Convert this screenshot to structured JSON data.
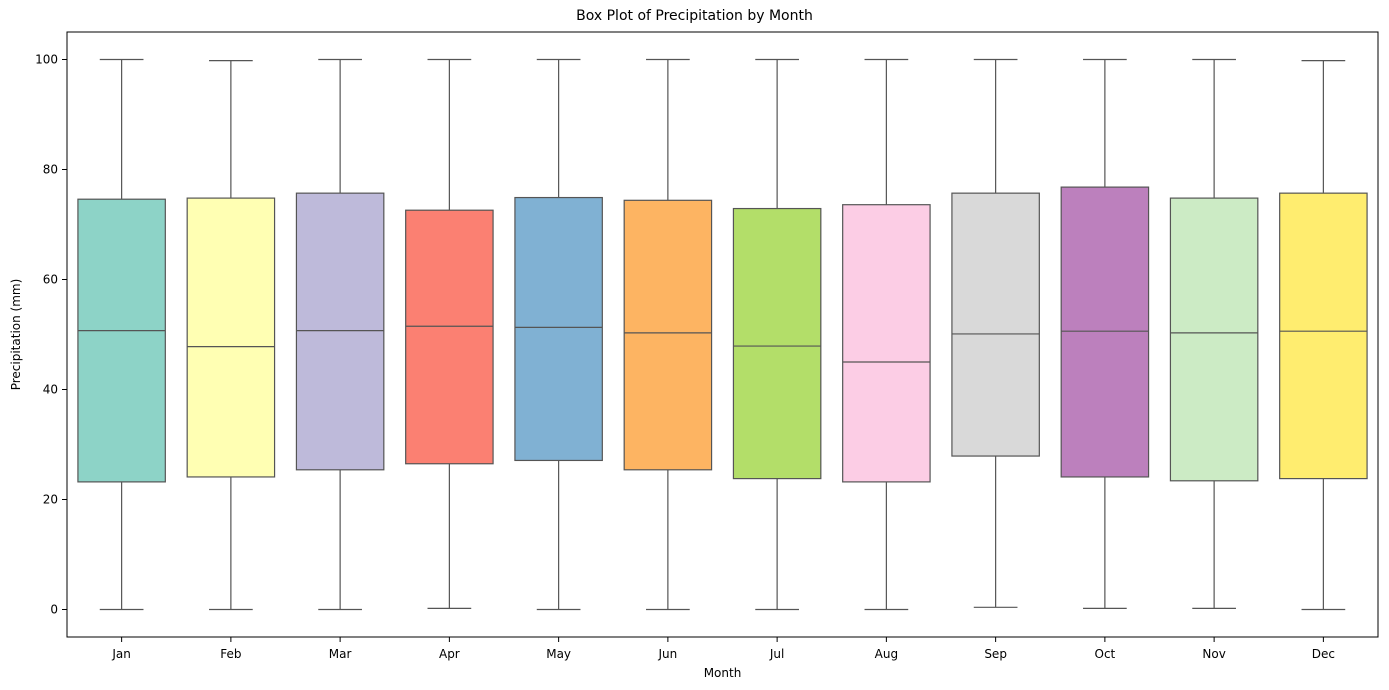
{
  "chart_data": {
    "type": "box",
    "title": "Box Plot of Precipitation by Month",
    "xlabel": "Month",
    "ylabel": "Precipitation (mm)",
    "ylim": [
      -5,
      105
    ],
    "yticks": [
      0,
      20,
      40,
      60,
      80,
      100
    ],
    "grid": false,
    "legend": "none",
    "categories": [
      "Jan",
      "Feb",
      "Mar",
      "Apr",
      "May",
      "Jun",
      "Jul",
      "Aug",
      "Sep",
      "Oct",
      "Nov",
      "Dec"
    ],
    "boxes": [
      {
        "category": "Jan",
        "min": 0.0,
        "q1": 23.2,
        "median": 50.7,
        "q3": 74.6,
        "max": 100.0,
        "color": "#8dd3c7"
      },
      {
        "category": "Feb",
        "min": 0.0,
        "q1": 24.1,
        "median": 47.8,
        "q3": 74.8,
        "max": 99.8,
        "color": "#ffffb3"
      },
      {
        "category": "Mar",
        "min": 0.0,
        "q1": 25.4,
        "median": 50.7,
        "q3": 75.7,
        "max": 100.0,
        "color": "#bebada"
      },
      {
        "category": "Apr",
        "min": 0.2,
        "q1": 26.5,
        "median": 51.5,
        "q3": 72.6,
        "max": 100.0,
        "color": "#fb8072"
      },
      {
        "category": "May",
        "min": 0.0,
        "q1": 27.1,
        "median": 51.3,
        "q3": 74.9,
        "max": 100.0,
        "color": "#80b1d3"
      },
      {
        "category": "Jun",
        "min": 0.0,
        "q1": 25.4,
        "median": 50.3,
        "q3": 74.4,
        "max": 100.0,
        "color": "#fdb462"
      },
      {
        "category": "Jul",
        "min": 0.0,
        "q1": 23.8,
        "median": 47.9,
        "q3": 72.9,
        "max": 100.0,
        "color": "#b3de69"
      },
      {
        "category": "Aug",
        "min": 0.0,
        "q1": 23.2,
        "median": 45.0,
        "q3": 73.6,
        "max": 100.0,
        "color": "#fccde5"
      },
      {
        "category": "Sep",
        "min": 0.4,
        "q1": 27.9,
        "median": 50.1,
        "q3": 75.7,
        "max": 100.0,
        "color": "#d9d9d9"
      },
      {
        "category": "Oct",
        "min": 0.2,
        "q1": 24.1,
        "median": 50.6,
        "q3": 76.8,
        "max": 100.0,
        "color": "#bc80bd"
      },
      {
        "category": "Nov",
        "min": 0.2,
        "q1": 23.4,
        "median": 50.3,
        "q3": 74.8,
        "max": 100.0,
        "color": "#ccebc5"
      },
      {
        "category": "Dec",
        "min": 0.0,
        "q1": 23.8,
        "median": 50.6,
        "q3": 75.7,
        "max": 99.8,
        "color": "#ffed6f"
      }
    ]
  }
}
